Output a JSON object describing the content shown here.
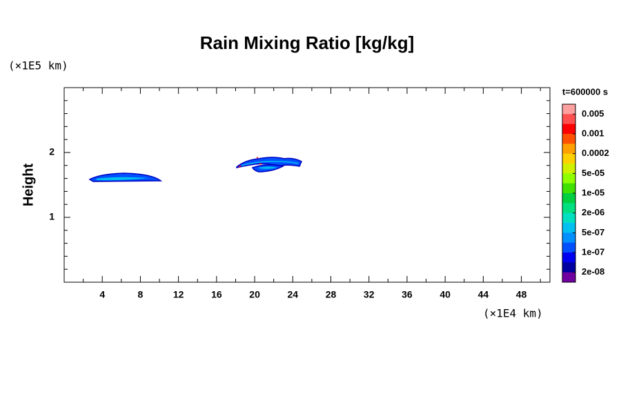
{
  "chart_data": {
    "type": "contour",
    "title": "Rain Mixing Ratio [kg/kg]",
    "y_label": "Height",
    "y_unit": "(×1E5 km)",
    "x_unit": "(×1E4 km)",
    "xlim": [
      0,
      51
    ],
    "ylim": [
      0,
      3
    ],
    "xticks": [
      4,
      8,
      12,
      16,
      20,
      24,
      28,
      32,
      36,
      40,
      44,
      48
    ],
    "yticks": [
      1,
      2
    ],
    "xminorticks": [
      2,
      6,
      10,
      14,
      18,
      22,
      26,
      30,
      34,
      38,
      42,
      46,
      50
    ],
    "yminorticks": [
      0.2,
      0.4,
      0.6,
      0.8,
      1.2,
      1.4,
      1.6,
      1.8,
      2.2,
      2.4,
      2.6,
      2.8
    ],
    "colorbar_title": "t=600000 s",
    "colorbar_colors": [
      "#ffa0a0",
      "#ff5050",
      "#ff0000",
      "#ff5000",
      "#ffa000",
      "#ffd000",
      "#d0f000",
      "#90ff00",
      "#40e000",
      "#00d040",
      "#00e080",
      "#00e0c0",
      "#00c0f0",
      "#0090ff",
      "#0050ff",
      "#0000f0",
      "#0000a0",
      "#7000a0"
    ],
    "colorbar_ticks": [
      0.005,
      0.001,
      0.0002,
      {
        "value": 5e-05,
        "label": "5e-05"
      },
      {
        "value": 1e-05,
        "label": "1e-05"
      },
      {
        "value": 2e-06,
        "label": "2e-06"
      },
      {
        "value": 5e-07,
        "label": "5e-07"
      },
      {
        "value": 1e-07,
        "label": "1e-07"
      },
      {
        "value": 2e-08,
        "label": "2e-08"
      }
    ]
  }
}
